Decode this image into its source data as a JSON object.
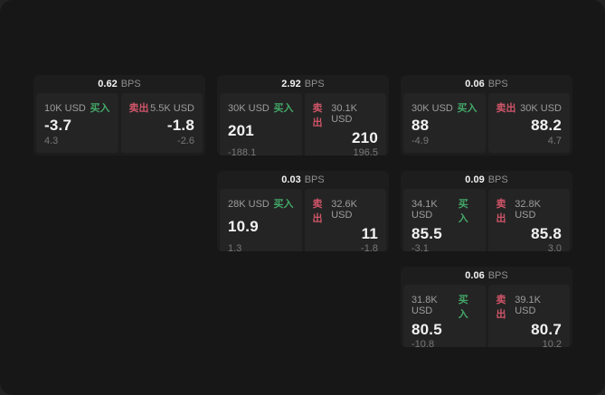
{
  "labels": {
    "bps_unit": "BPS",
    "buy": "买入",
    "sell": "卖出"
  },
  "colors": {
    "panel_bg": "#171717",
    "card_bg": "#1d1d1d",
    "cell_bg": "#242424",
    "buy": "#43a868",
    "sell": "#cf5568"
  },
  "cards": [
    {
      "spread": "0.62",
      "buy": {
        "size": "10K USD",
        "price": "-3.7",
        "change": "4.3"
      },
      "sell": {
        "size": "5.5K USD",
        "price": "-1.8",
        "change": "-2.6"
      }
    },
    {
      "spread": "2.92",
      "buy": {
        "size": "30K USD",
        "price": "201",
        "change": "-188.1"
      },
      "sell": {
        "size": "30.1K USD",
        "price": "210",
        "change": "196.5"
      }
    },
    {
      "spread": "0.06",
      "buy": {
        "size": "30K USD",
        "price": "88",
        "change": "-4.9"
      },
      "sell": {
        "size": "30K USD",
        "price": "88.2",
        "change": "4.7"
      }
    },
    {
      "spread": "0.03",
      "buy": {
        "size": "28K USD",
        "price": "10.9",
        "change": "1.3"
      },
      "sell": {
        "size": "32.6K USD",
        "price": "11",
        "change": "-1.8"
      }
    },
    {
      "spread": "0.09",
      "buy": {
        "size": "34.1K USD",
        "price": "85.5",
        "change": "-3.1"
      },
      "sell": {
        "size": "32.8K USD",
        "price": "85.8",
        "change": "3.0"
      }
    },
    {
      "spread": "0.06",
      "buy": {
        "size": "31.8K USD",
        "price": "80.5",
        "change": "-10.8"
      },
      "sell": {
        "size": "39.1K USD",
        "price": "80.7",
        "change": "10.2"
      }
    }
  ]
}
